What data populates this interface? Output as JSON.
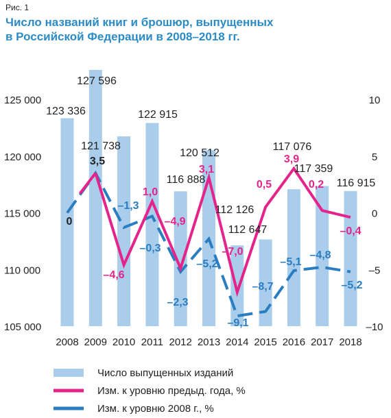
{
  "figure_label": "Рис. 1",
  "title_line1": "Число названий книг и брошюр, выпущенных",
  "title_line2": "в Российской Федерации в 2008–2018 гг.",
  "colors": {
    "bars": "#a9cdea",
    "prev_year": "#e4238b",
    "vs2008": "#2a7dc0",
    "title": "#2a8bc6",
    "text": "#222222"
  },
  "chart_data": {
    "type": "bar",
    "title": "Число названий книг и брошюр, выпущенных в Российской Федерации в 2008–2018 гг.",
    "categories": [
      "2008",
      "2009",
      "2010",
      "2011",
      "2012",
      "2013",
      "2014",
      "2015",
      "2016",
      "2017",
      "2018"
    ],
    "bar_series": {
      "name": "Число выпущенных изданий",
      "values": [
        123336,
        127596,
        121738,
        122915,
        116888,
        120512,
        112126,
        112647,
        117076,
        117359,
        116915
      ],
      "labels": [
        "123 336",
        "127 596",
        "121 738",
        "122 915",
        "116 888",
        "120 512",
        "112 126",
        "112 647",
        "117 076",
        "117 359",
        "116 915"
      ]
    },
    "line_series": [
      {
        "name": "Изм. к уровню предыд. года, %",
        "style": "solid",
        "values": [
          null,
          3.5,
          -4.6,
          1.0,
          -4.9,
          3.1,
          -7.0,
          0.5,
          3.9,
          0.2,
          -0.4
        ],
        "labels": [
          "",
          "",
          "–4,6",
          "1,0",
          "–4,9",
          "3,1",
          "–7,0",
          "0,5",
          "3,9",
          "0,2",
          "–0,4"
        ]
      },
      {
        "name": "Изм. к уровню 2008 г., %",
        "style": "dashed",
        "values": [
          0,
          3.5,
          -1.3,
          -0.3,
          -5.2,
          -2.3,
          -9.1,
          -8.7,
          -5.1,
          -4.8,
          -5.2
        ],
        "labels": [
          "0",
          "3,5",
          "–1,3",
          "–0,3",
          "–5,2",
          "–2,3",
          "–9,1",
          "–8,7",
          "–5,1",
          "–4,8",
          "–5,2"
        ]
      }
    ],
    "y_left": {
      "min": 105000,
      "max": 125000,
      "ticks": [
        105000,
        110000,
        115000,
        120000,
        125000
      ],
      "tick_labels": [
        "105 000",
        "110 000",
        "115 000",
        "120 000",
        "125 000"
      ]
    },
    "y_right": {
      "min": -10,
      "max": 10,
      "ticks": [
        -10,
        -5,
        0,
        5,
        10
      ],
      "tick_labels": [
        "–10",
        "–5",
        "0",
        "5",
        "10"
      ]
    },
    "grid": false,
    "legend_position": "bottom"
  }
}
